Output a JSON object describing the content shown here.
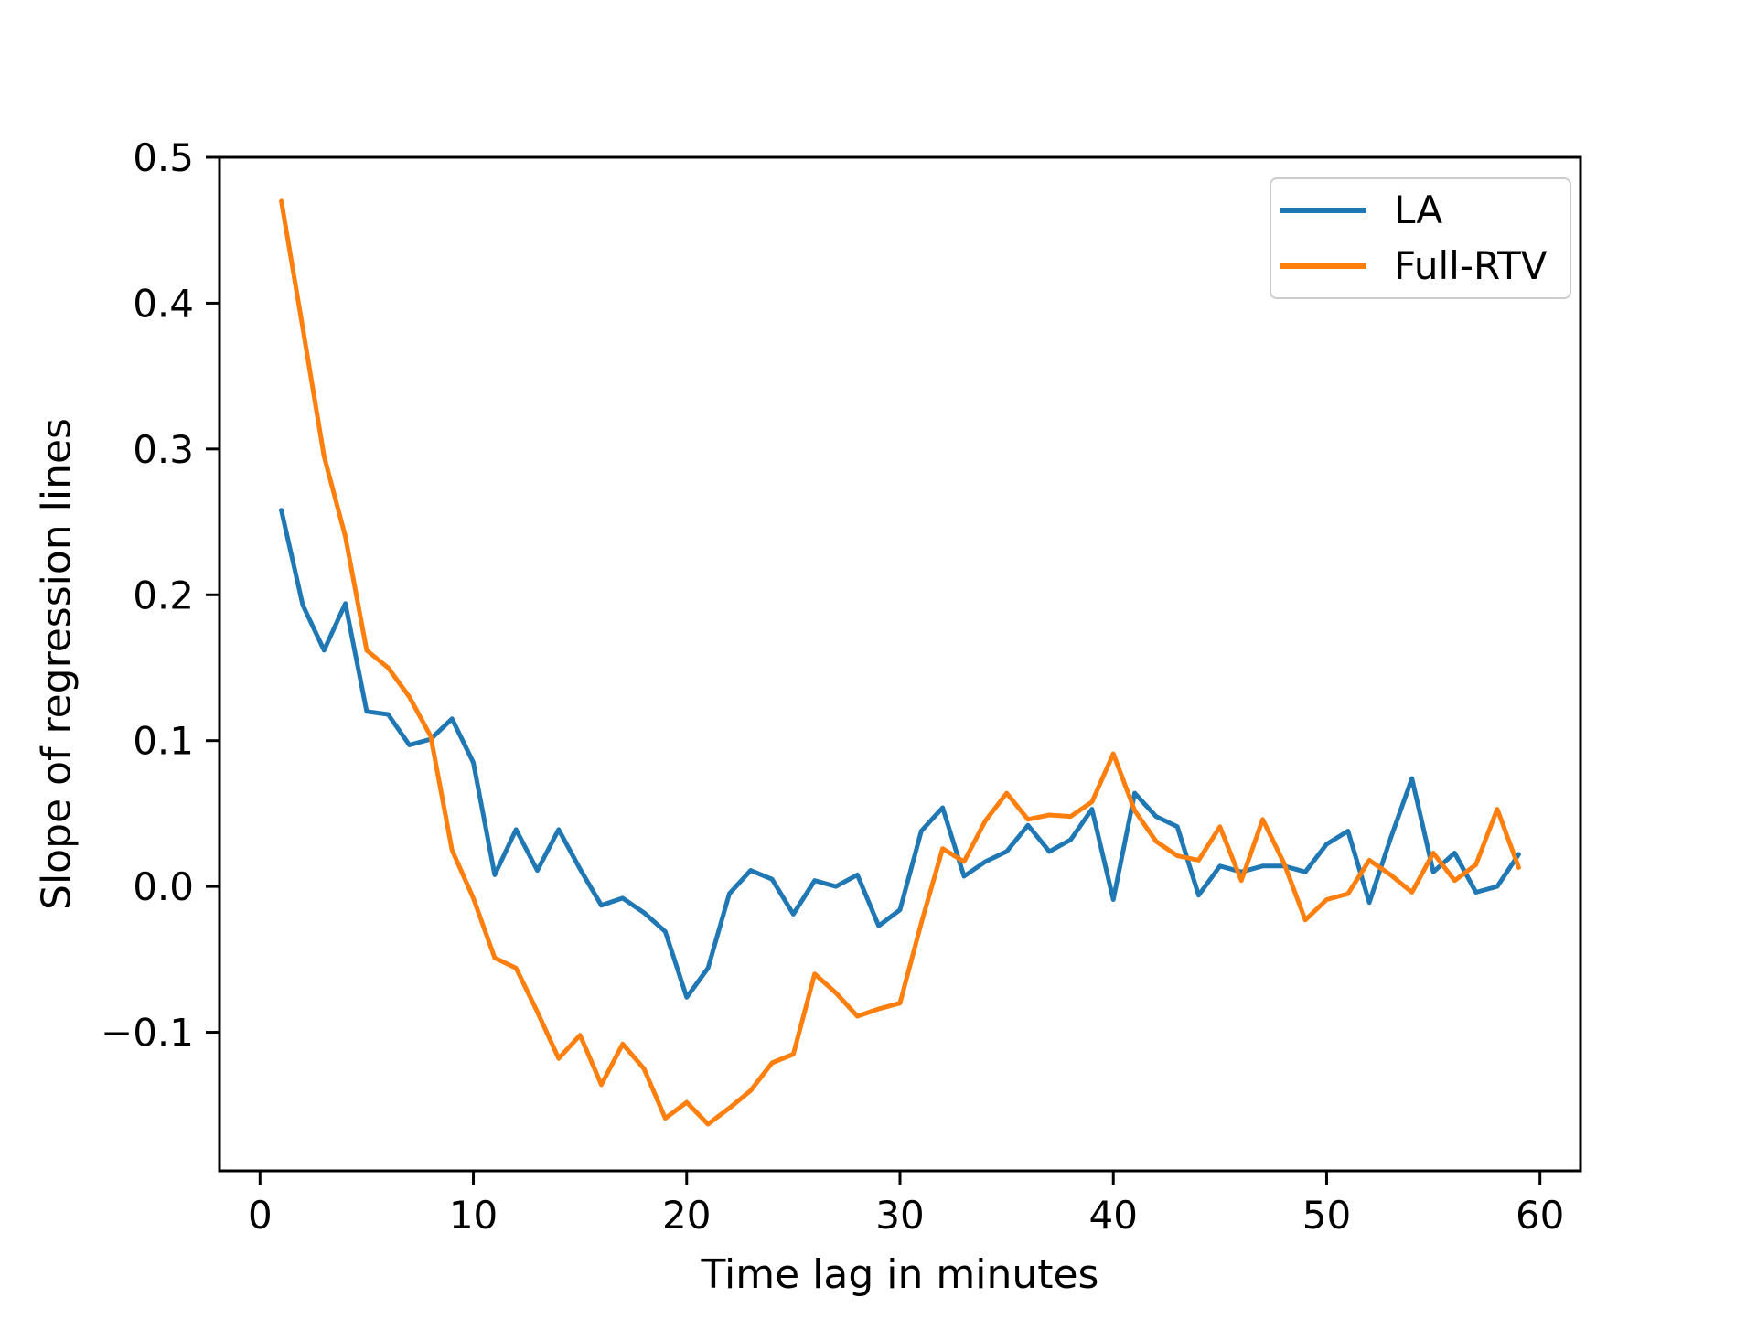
{
  "figure": {
    "background": "#ffffff",
    "axis_color": "#000000"
  },
  "labels": {
    "xlabel": "Time lag in minutes",
    "ylabel": "Slope of regression lines"
  },
  "legend": {
    "position": "upper right",
    "entries": [
      {
        "label": "LA",
        "color": "#1f77b4"
      },
      {
        "label": "Full-RTV",
        "color": "#ff7f0e"
      }
    ]
  },
  "chart_data": {
    "type": "line",
    "title": "",
    "xlabel": "Time lag in minutes",
    "ylabel": "Slope of regression lines",
    "xlim": [
      -1.9,
      61.9
    ],
    "ylim": [
      -0.195,
      0.5
    ],
    "x_ticks": [
      0,
      10,
      20,
      30,
      40,
      50,
      60
    ],
    "y_ticks": [
      0.5,
      0.4,
      0.3,
      0.2,
      0.1,
      0.0,
      -0.1
    ],
    "grid": false,
    "legend_position": "upper right",
    "x": [
      1,
      2,
      3,
      4,
      5,
      6,
      7,
      8,
      9,
      10,
      11,
      12,
      13,
      14,
      15,
      16,
      17,
      18,
      19,
      20,
      21,
      22,
      23,
      24,
      25,
      26,
      27,
      28,
      29,
      30,
      31,
      32,
      33,
      34,
      35,
      36,
      37,
      38,
      39,
      40,
      41,
      42,
      43,
      44,
      45,
      46,
      47,
      48,
      49,
      50,
      51,
      52,
      53,
      54,
      55,
      56,
      57,
      58,
      59
    ],
    "series": [
      {
        "name": "LA",
        "color": "#1f77b4",
        "values": [
          0.258,
          0.193,
          0.162,
          0.194,
          0.12,
          0.118,
          0.097,
          0.101,
          0.115,
          0.085,
          0.008,
          0.039,
          0.011,
          0.039,
          0.012,
          -0.013,
          -0.008,
          -0.018,
          -0.031,
          -0.076,
          -0.056,
          -0.005,
          0.011,
          0.005,
          -0.019,
          0.004,
          0.0,
          0.008,
          -0.027,
          -0.016,
          0.038,
          0.054,
          0.007,
          0.017,
          0.024,
          0.042,
          0.024,
          0.032,
          0.053,
          -0.009,
          0.064,
          0.048,
          0.041,
          -0.006,
          0.014,
          0.01,
          0.014,
          0.014,
          0.01,
          0.029,
          0.038,
          -0.011,
          0.033,
          0.074,
          0.01,
          0.023,
          -0.004,
          0.0,
          0.022
        ]
      },
      {
        "name": "Full-RTV",
        "color": "#ff7f0e",
        "values": [
          0.47,
          0.383,
          0.295,
          0.24,
          0.162,
          0.15,
          0.13,
          0.103,
          0.025,
          -0.008,
          -0.049,
          -0.056,
          -0.086,
          -0.118,
          -0.102,
          -0.136,
          -0.108,
          -0.125,
          -0.159,
          -0.148,
          -0.163,
          -0.152,
          -0.14,
          -0.121,
          -0.115,
          -0.06,
          -0.073,
          -0.089,
          -0.084,
          -0.08,
          -0.025,
          0.026,
          0.017,
          0.045,
          0.064,
          0.046,
          0.049,
          0.048,
          0.058,
          0.091,
          0.052,
          0.031,
          0.021,
          0.018,
          0.041,
          0.004,
          0.046,
          0.016,
          -0.023,
          -0.009,
          -0.005,
          0.018,
          0.008,
          -0.004,
          0.023,
          0.004,
          0.015,
          0.053,
          0.013
        ]
      }
    ]
  }
}
